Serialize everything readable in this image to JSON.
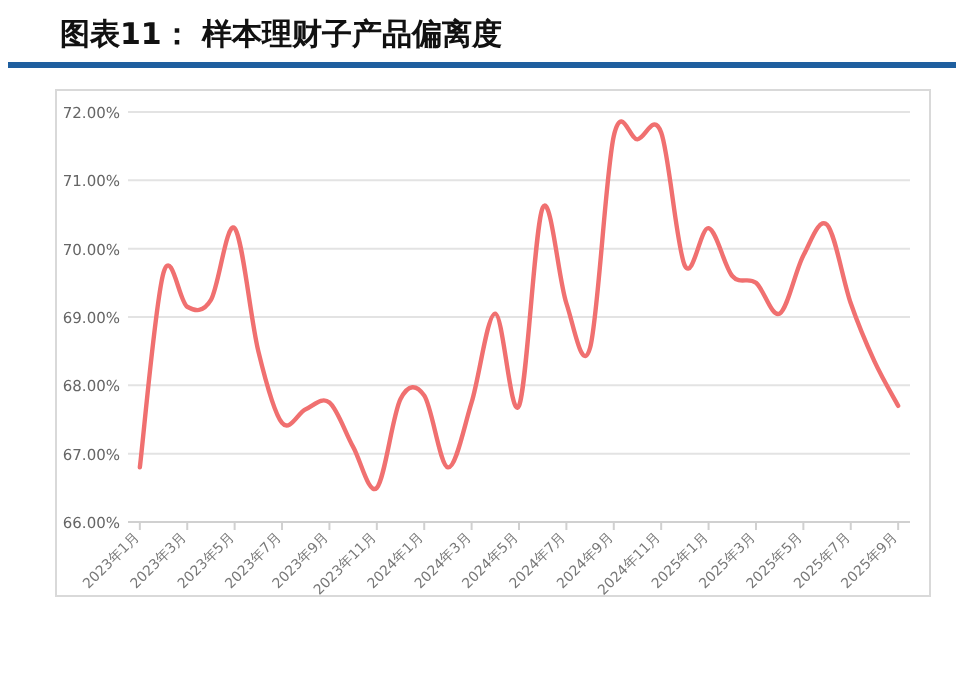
{
  "chart_data": {
    "type": "line",
    "title": "图表11：  样本理财子产品偏离度",
    "categories": [
      "2023年1月",
      null,
      "2023年3月",
      null,
      "2023年5月",
      null,
      "2023年7月",
      null,
      "2023年9月",
      null,
      "2023年11月",
      null,
      "2024年1月",
      null,
      "2024年3月",
      null,
      "2024年5月",
      null,
      "2024年7月",
      null,
      "2024年9月",
      null,
      "2024年11月",
      null,
      "2025年1月",
      null,
      "2025年3月",
      null,
      "2025年5月",
      null,
      "2025年7月",
      null,
      "2025年9月"
    ],
    "series": [
      {
        "color": "#f07070",
        "values": [
          66.8,
          69.65,
          69.15,
          69.25,
          70.3,
          68.5,
          67.45,
          67.65,
          67.75,
          67.1,
          66.5,
          67.8,
          67.85,
          66.8,
          67.75,
          69.05,
          67.7,
          70.6,
          69.2,
          68.55,
          71.65,
          71.6,
          71.7,
          69.75,
          70.3,
          69.6,
          69.5,
          69.05,
          69.9,
          70.35,
          69.2,
          68.35,
          67.7
        ]
      }
    ],
    "ylim": [
      66,
      72
    ],
    "yticks": [
      {
        "value": 66,
        "label": "66.00%"
      },
      {
        "value": 67,
        "label": "67.00%"
      },
      {
        "value": 68,
        "label": "68.00%"
      },
      {
        "value": 69,
        "label": "69.00%"
      },
      {
        "value": 70,
        "label": "70.00%"
      },
      {
        "value": 71,
        "label": "71.00%"
      },
      {
        "value": 72,
        "label": "72.00%"
      }
    ],
    "grid": "y",
    "marker": "none",
    "line_style": "solid"
  }
}
